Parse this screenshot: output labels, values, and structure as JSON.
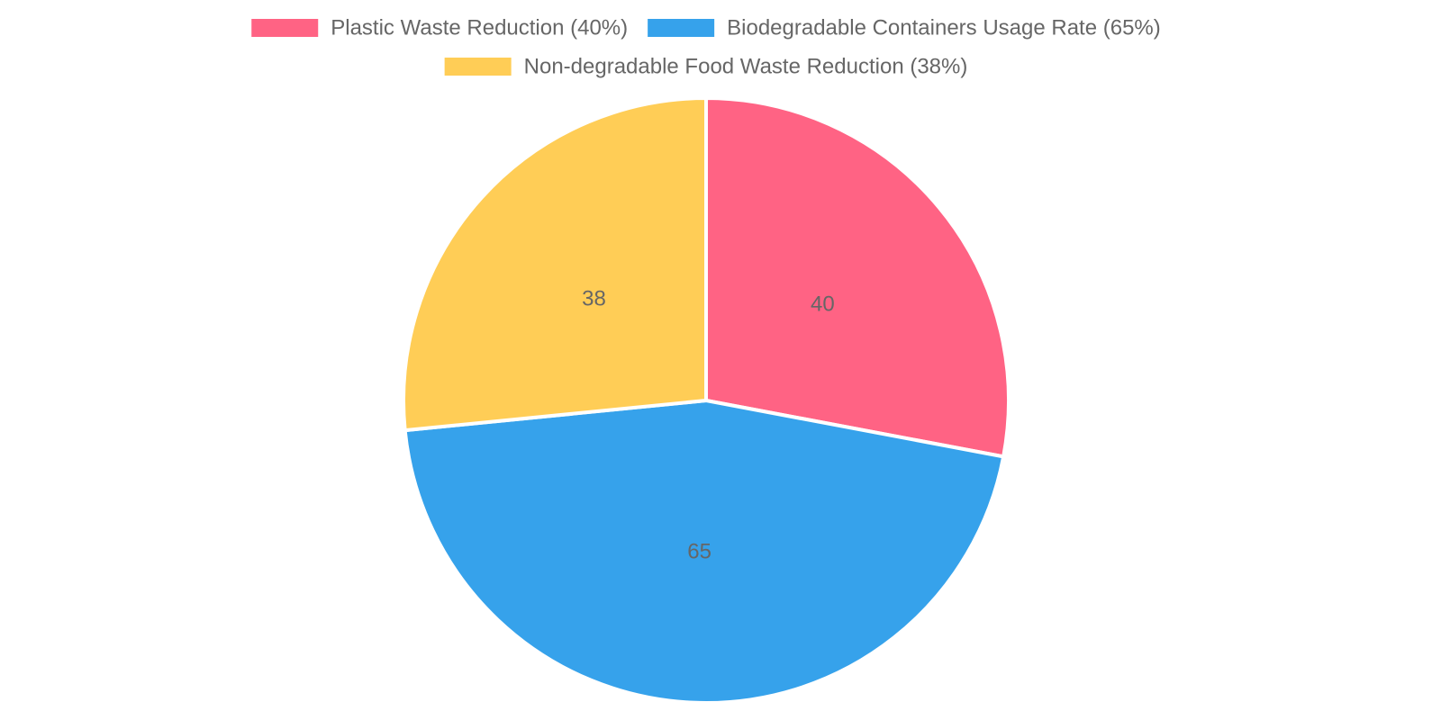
{
  "chart_data": {
    "type": "pie",
    "categories": [
      "Plastic Waste Reduction (40%)",
      "Biodegradable Containers Usage Rate (65%)",
      "Non-degradable Food Waste Reduction (38%)"
    ],
    "values": [
      40,
      65,
      38
    ],
    "colors": [
      "#ff6384",
      "#36a2eb",
      "#ffcd56"
    ],
    "legend_position": "top",
    "data_labels": [
      "40",
      "65",
      "38"
    ]
  }
}
